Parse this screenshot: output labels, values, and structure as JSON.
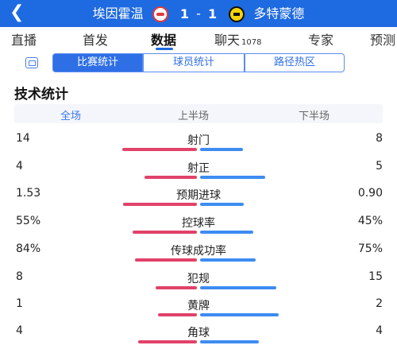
{
  "header": {
    "back_icon": "chevron-left-icon",
    "home_team": "埃因霍温",
    "home_score": "1",
    "separator": "-",
    "away_score": "1",
    "away_team": "多特蒙德",
    "colors": {
      "bar_bg": "#1e6ae0"
    }
  },
  "tabs": [
    {
      "label": "直播"
    },
    {
      "label": "首发"
    },
    {
      "label": "数据",
      "active": true
    },
    {
      "label": "聊天",
      "count": "1078"
    },
    {
      "label": "专家"
    },
    {
      "label": "预测"
    }
  ],
  "segments": [
    {
      "label": "比赛统计",
      "active": true
    },
    {
      "label": "球员统计"
    },
    {
      "label": "路径热区"
    }
  ],
  "section_title": "技术统计",
  "periods": [
    {
      "label": "全场",
      "active": true
    },
    {
      "label": "上半场"
    },
    {
      "label": "下半场"
    }
  ],
  "colors": {
    "home": "#e0426a",
    "away": "#3d8cf2",
    "accent": "#2f6fe6"
  },
  "stats": [
    {
      "name": "射门",
      "home": "14",
      "away": "8",
      "home_share": 0.636,
      "away_share": 0.364
    },
    {
      "name": "射正",
      "home": "4",
      "away": "5",
      "home_share": 0.444,
      "away_share": 0.556
    },
    {
      "name": "预期进球",
      "home": "1.53",
      "away": "0.90",
      "home_share": 0.63,
      "away_share": 0.37
    },
    {
      "name": "控球率",
      "home": "55%",
      "away": "45%",
      "home_share": 0.55,
      "away_share": 0.45
    },
    {
      "name": "传球成功率",
      "home": "84%",
      "away": "75%",
      "home_share": 0.53,
      "away_share": 0.47
    },
    {
      "name": "犯规",
      "home": "8",
      "away": "15",
      "home_share": 0.348,
      "away_share": 0.652
    },
    {
      "name": "黄牌",
      "home": "1",
      "away": "2",
      "home_share": 0.333,
      "away_share": 0.667
    },
    {
      "name": "角球",
      "home": "4",
      "away": "4",
      "home_share": 0.5,
      "away_share": 0.5
    }
  ]
}
